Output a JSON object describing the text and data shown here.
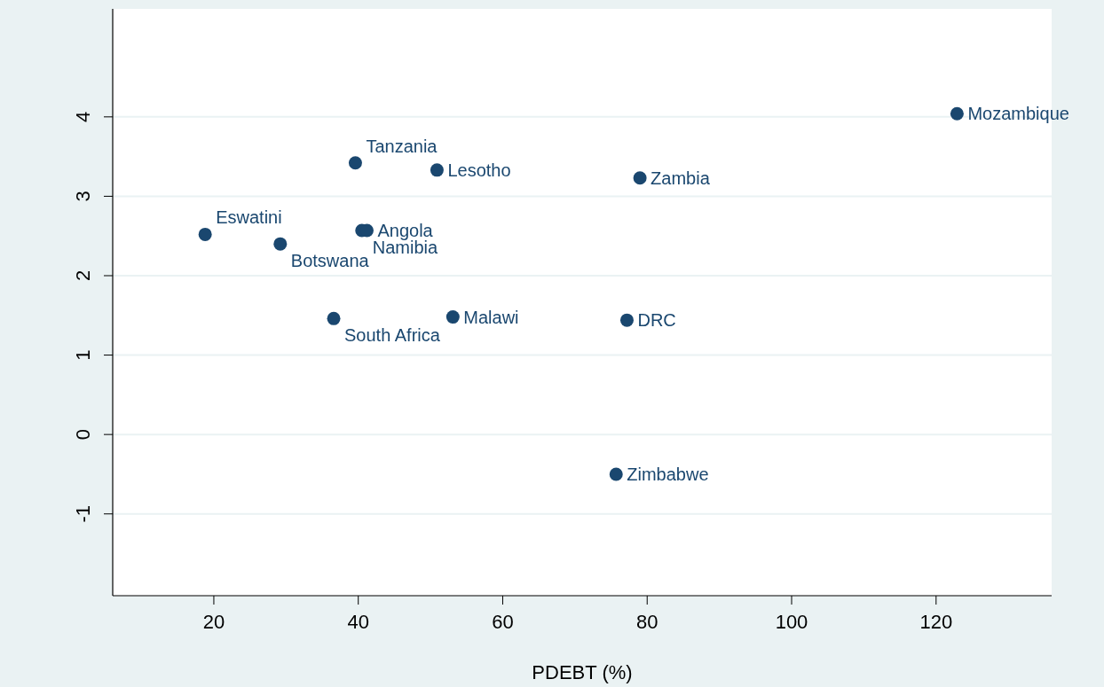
{
  "chart_data": {
    "type": "scatter",
    "xlabel": "PDEBT (%)",
    "x": [
      122.9,
      39.6,
      50.9,
      79.0,
      18.8,
      29.2,
      40.5,
      41.2,
      36.6,
      53.1,
      77.2,
      75.7
    ],
    "values": [
      4.04,
      3.42,
      3.33,
      3.23,
      2.52,
      2.4,
      2.57,
      2.57,
      1.46,
      1.48,
      1.44,
      -0.5
    ],
    "color": "#1a476f",
    "marker": "circle",
    "grid": "y",
    "xlim": [
      6,
      136
    ],
    "xticks": [
      20,
      40,
      60,
      80,
      100,
      120
    ],
    "ylim": [
      -2.03,
      5.36
    ],
    "yticks": [
      -1,
      0,
      1,
      2,
      3,
      4
    ],
    "annotations": [
      {
        "text": "Mozambique",
        "x": 122.9,
        "y": 4.04
      },
      {
        "text": "Tanzania",
        "x": 39.6,
        "y": 3.42
      },
      {
        "text": "Lesotho",
        "x": 50.9,
        "y": 3.33
      },
      {
        "text": "Zambia",
        "x": 79.0,
        "y": 3.23
      },
      {
        "text": "Eswatini",
        "x": 18.8,
        "y": 2.52
      },
      {
        "text": "Botswana",
        "x": 29.2,
        "y": 2.4
      },
      {
        "text": "Namibia",
        "x": 40.5,
        "y": 2.57
      },
      {
        "text": "Angola",
        "x": 41.2,
        "y": 2.57
      },
      {
        "text": "South Africa",
        "x": 36.6,
        "y": 1.46
      },
      {
        "text": "Malawi",
        "x": 53.1,
        "y": 1.48
      },
      {
        "text": "DRC",
        "x": 77.2,
        "y": 1.44
      },
      {
        "text": "Zimbabwe",
        "x": 75.7,
        "y": -0.5
      }
    ]
  }
}
